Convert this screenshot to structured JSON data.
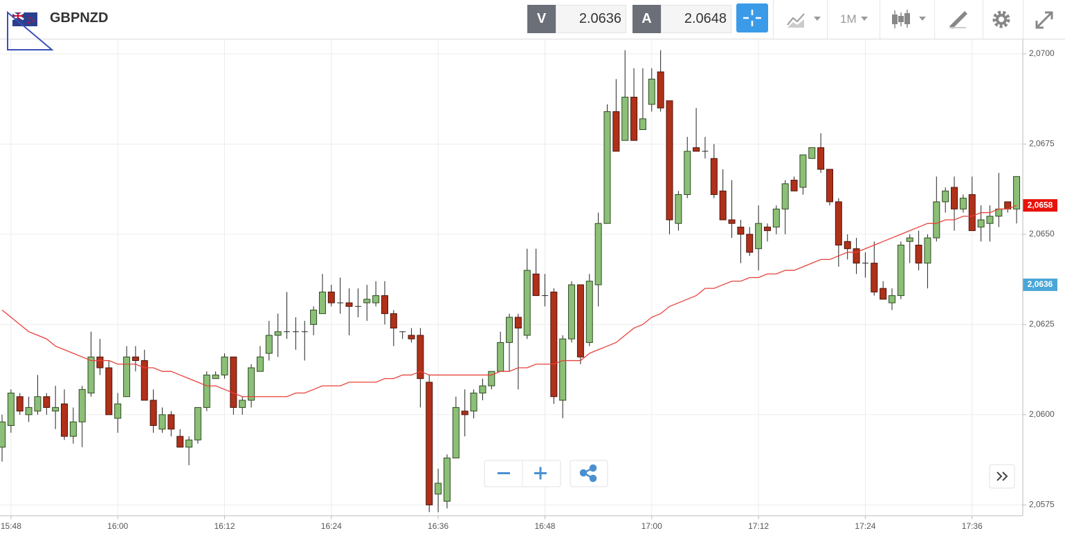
{
  "toolbar": {
    "symbol": "GBPNZD",
    "bid_label": "V",
    "bid": "2.0636",
    "ask_label": "A",
    "ask": "2.0648",
    "timeframe": "1M"
  },
  "chart_data": {
    "type": "candlestick",
    "categories": [
      null,
      "15:48",
      null,
      null,
      null,
      null,
      null,
      null,
      null,
      null,
      null,
      null,
      null,
      "16:00",
      null,
      null,
      null,
      null,
      null,
      null,
      null,
      null,
      null,
      null,
      null,
      "16:12",
      null,
      null,
      null,
      null,
      null,
      null,
      null,
      null,
      null,
      null,
      null,
      "16:24",
      null,
      null,
      null,
      null,
      null,
      null,
      null,
      null,
      null,
      null,
      null,
      "16:36",
      null,
      null,
      null,
      null,
      null,
      null,
      null,
      null,
      null,
      null,
      null,
      "16:48",
      null,
      null,
      null,
      null,
      null,
      null,
      null,
      null,
      null,
      null,
      null,
      "17:00",
      null,
      null,
      null,
      null,
      null,
      null,
      null,
      null,
      null,
      null,
      null,
      "17:12",
      null,
      null,
      null,
      null,
      null,
      null,
      null,
      null,
      null,
      null,
      null,
      "17:24",
      null,
      null,
      null,
      null,
      null,
      null,
      null,
      null,
      null,
      null,
      null,
      "17:36",
      null,
      null,
      null,
      null,
      null
    ],
    "series": [
      {
        "type": "candlestick",
        "up_color": "#8cbf77",
        "down_color": "#b0301a",
        "open": [
          2.0591,
          2.0597,
          2.0605,
          2.06,
          2.0601,
          2.0605,
          2.0601,
          2.0603,
          2.0594,
          2.0598,
          2.0606,
          2.0616,
          2.0613,
          2.0599,
          2.0605,
          2.0616,
          2.0615,
          2.0604,
          2.0596,
          2.06,
          2.0594,
          2.0591,
          2.0593,
          2.0602,
          2.061,
          2.0611,
          2.0616,
          2.0602,
          2.0604,
          2.0612,
          2.0617,
          2.0622,
          2.0623,
          2.0623,
          2.0623,
          2.0625,
          2.0628,
          2.0634,
          2.0631,
          2.0631,
          2.063,
          2.0631,
          2.0631,
          2.0633,
          2.0628,
          2.0623,
          2.0622,
          2.0622,
          2.0609,
          2.0578,
          2.0576,
          2.0588,
          2.0601,
          2.0601,
          2.0606,
          2.0608,
          2.0612,
          2.062,
          2.0627,
          2.0622,
          2.0639,
          2.0633,
          2.0634,
          2.0604,
          2.0621,
          2.0636,
          2.062,
          2.0636,
          2.0653,
          2.0684,
          2.0676,
          2.0688,
          2.0679,
          2.0686,
          2.0695,
          2.0687,
          2.0653,
          2.0661,
          2.0674,
          2.0673,
          2.0671,
          2.0662,
          2.0654,
          2.0652,
          2.065,
          2.0646,
          2.0652,
          2.0652,
          2.0657,
          2.0665,
          2.0663,
          2.0671,
          2.0674,
          2.0668,
          2.0659,
          2.0648,
          2.0646,
          2.0642,
          2.0642,
          2.0635,
          2.0631,
          2.0633,
          2.0648,
          2.0647,
          2.0642,
          2.0649,
          2.0659,
          2.0663,
          2.0657,
          2.0661,
          2.0652,
          2.0653,
          2.0655,
          2.0659,
          2.0657
        ],
        "high": [
          2.06,
          2.0607,
          2.0606,
          2.0605,
          2.0611,
          2.0606,
          2.0608,
          2.0607,
          2.0602,
          2.0608,
          2.0623,
          2.0621,
          2.0615,
          2.0606,
          2.0619,
          2.0619,
          2.0618,
          2.0607,
          2.0602,
          2.0601,
          2.0596,
          2.0594,
          2.0602,
          2.0612,
          2.0612,
          2.0617,
          2.0616,
          2.0605,
          2.0614,
          2.0619,
          2.0626,
          2.0628,
          2.0634,
          2.0627,
          2.0626,
          2.063,
          2.0639,
          2.0636,
          2.0638,
          2.0635,
          2.0635,
          2.0636,
          2.0637,
          2.0637,
          2.0629,
          2.0623,
          2.0624,
          2.0624,
          2.0611,
          2.0585,
          2.0589,
          2.0605,
          2.0607,
          2.0607,
          2.061,
          2.0612,
          2.0623,
          2.0628,
          2.0628,
          2.0646,
          2.0646,
          2.0639,
          2.0635,
          2.0622,
          2.0637,
          2.0636,
          2.0639,
          2.0656,
          2.0686,
          2.0693,
          2.0701,
          2.0696,
          2.0696,
          2.0696,
          2.0701,
          2.0687,
          2.0662,
          2.0677,
          2.0685,
          2.0677,
          2.0675,
          2.0668,
          2.0665,
          2.0654,
          2.0652,
          2.0658,
          2.0653,
          2.0658,
          2.0665,
          2.0666,
          2.0672,
          2.0674,
          2.0678,
          2.0668,
          2.066,
          2.065,
          2.0649,
          2.0645,
          2.0648,
          2.0637,
          2.0635,
          2.0648,
          2.065,
          2.0651,
          2.065,
          2.0666,
          2.0663,
          2.0666,
          2.0661,
          2.0666,
          2.0658,
          2.0658,
          2.0667,
          2.0659,
          2.0666
        ],
        "low": [
          2.0587,
          2.0595,
          2.06,
          2.0598,
          2.06,
          2.06,
          2.0596,
          2.0593,
          2.0592,
          2.0591,
          2.0605,
          2.0611,
          2.06,
          2.0595,
          2.0605,
          2.0612,
          2.0604,
          2.0595,
          2.0595,
          2.0594,
          2.0591,
          2.0586,
          2.0592,
          2.0601,
          2.061,
          2.061,
          2.06,
          2.06,
          2.0602,
          2.0612,
          2.0615,
          2.0616,
          2.0621,
          2.0618,
          2.0615,
          2.0622,
          2.0628,
          2.063,
          2.0628,
          2.0622,
          2.0627,
          2.0626,
          2.063,
          2.0625,
          2.0619,
          2.0621,
          2.062,
          2.0602,
          2.0573,
          2.0573,
          2.0574,
          2.0588,
          2.0594,
          2.0599,
          2.0604,
          2.0607,
          2.0612,
          2.0612,
          2.0607,
          2.0621,
          2.0633,
          2.063,
          2.0603,
          2.0599,
          2.062,
          2.0614,
          2.0619,
          2.063,
          2.0653,
          2.0673,
          2.0676,
          2.0676,
          2.0679,
          2.0684,
          2.0684,
          2.065,
          2.0651,
          2.066,
          2.0673,
          2.0671,
          2.066,
          2.0654,
          2.0649,
          2.0642,
          2.0644,
          2.064,
          2.0648,
          2.065,
          2.065,
          2.0662,
          2.0661,
          2.0671,
          2.0667,
          2.0658,
          2.0641,
          2.0643,
          2.0639,
          2.0638,
          2.0633,
          2.0632,
          2.0629,
          2.0632,
          2.0642,
          2.064,
          2.0635,
          2.0648,
          2.0656,
          2.0651,
          2.0656,
          2.0651,
          2.0648,
          2.0648,
          2.0652,
          2.0656,
          2.0653
        ],
        "close": [
          2.0598,
          2.0606,
          2.0601,
          2.0602,
          2.0605,
          2.0602,
          2.0602,
          2.0594,
          2.0598,
          2.0607,
          2.0616,
          2.0613,
          2.06,
          2.0603,
          2.0616,
          2.0615,
          2.0604,
          2.0597,
          2.06,
          2.0596,
          2.0591,
          2.0593,
          2.0602,
          2.0611,
          2.0611,
          2.0616,
          2.0602,
          2.0604,
          2.0613,
          2.0616,
          2.0622,
          2.0623,
          2.0623,
          2.0623,
          2.0623,
          2.0629,
          2.0634,
          2.0631,
          2.0631,
          2.063,
          2.063,
          2.0632,
          2.0633,
          2.0628,
          2.0624,
          2.0623,
          2.0621,
          2.061,
          2.0575,
          2.0581,
          2.0588,
          2.0602,
          2.06,
          2.0606,
          2.0608,
          2.0612,
          2.062,
          2.0627,
          2.0624,
          2.064,
          2.0633,
          2.0633,
          2.0605,
          2.0621,
          2.0636,
          2.0616,
          2.0637,
          2.0653,
          2.0684,
          2.0673,
          2.0688,
          2.0676,
          2.0682,
          2.0693,
          2.0685,
          2.0654,
          2.0661,
          2.0673,
          2.0673,
          2.0673,
          2.0661,
          2.0654,
          2.0653,
          2.065,
          2.0645,
          2.0653,
          2.0651,
          2.0657,
          2.0664,
          2.0662,
          2.0672,
          2.0674,
          2.0668,
          2.0659,
          2.0647,
          2.0646,
          2.0642,
          2.0642,
          2.0634,
          2.0632,
          2.0633,
          2.0647,
          2.0649,
          2.0642,
          2.0649,
          2.0659,
          2.0662,
          2.0657,
          2.066,
          2.0651,
          2.0654,
          2.0655,
          2.0657,
          2.0657,
          2.0666
        ]
      },
      {
        "type": "line",
        "color": "#e8403a",
        "values": [
          2.0629,
          2.0627,
          2.0625,
          2.0623,
          2.0622,
          2.0621,
          2.0619,
          2.0618,
          2.0617,
          2.0616,
          2.0615,
          2.0615,
          2.0615,
          2.0614,
          2.0614,
          2.0614,
          2.0613,
          2.0613,
          2.0612,
          2.0612,
          2.0611,
          2.061,
          2.0609,
          2.0608,
          2.0608,
          2.0607,
          2.0606,
          2.0605,
          2.0605,
          2.0605,
          2.0605,
          2.0605,
          2.0605,
          2.0606,
          2.0606,
          2.0607,
          2.0608,
          2.0608,
          2.0608,
          2.0609,
          2.0609,
          2.0609,
          2.0609,
          2.061,
          2.061,
          2.0611,
          2.0611,
          2.0612,
          2.0611,
          2.0611,
          2.0611,
          2.0611,
          2.0611,
          2.0611,
          2.0611,
          2.0611,
          2.0612,
          2.0612,
          2.0613,
          2.0613,
          2.0614,
          2.0614,
          2.0614,
          2.0615,
          2.0615,
          2.0615,
          2.0617,
          2.0618,
          2.0619,
          2.062,
          2.0622,
          2.0624,
          2.0625,
          2.0627,
          2.0628,
          2.063,
          2.0631,
          2.0632,
          2.0633,
          2.0635,
          2.0635,
          2.0636,
          2.0637,
          2.0637,
          2.0638,
          2.0638,
          2.0639,
          2.0639,
          2.064,
          2.064,
          2.0641,
          2.0642,
          2.0643,
          2.0643,
          2.0644,
          2.0645,
          2.0645,
          2.0646,
          2.0647,
          2.0648,
          2.0649,
          2.065,
          2.0651,
          2.0652,
          2.0653,
          2.0653,
          2.0654,
          2.0654,
          2.0655,
          2.0655,
          2.0656,
          2.0656,
          2.0657,
          2.0657,
          2.0658
        ]
      }
    ],
    "ylim": [
      2.0572,
      2.0704
    ],
    "yticks": [
      {
        "value": 2.0575,
        "label": "2,0575"
      },
      {
        "value": 2.06,
        "label": "2,0600"
      },
      {
        "value": 2.0625,
        "label": "2,0625"
      },
      {
        "value": 2.065,
        "label": "2,0650"
      },
      {
        "value": 2.0675,
        "label": "2,0675"
      },
      {
        "value": 2.07,
        "label": "2,0700"
      }
    ],
    "grid": true,
    "price_markers": [
      {
        "value": 2.0658,
        "label": "2,0658",
        "color": "#e8120c"
      },
      {
        "value": 2.0636,
        "label": "2,0636",
        "color": "#4ba6d8"
      }
    ]
  }
}
